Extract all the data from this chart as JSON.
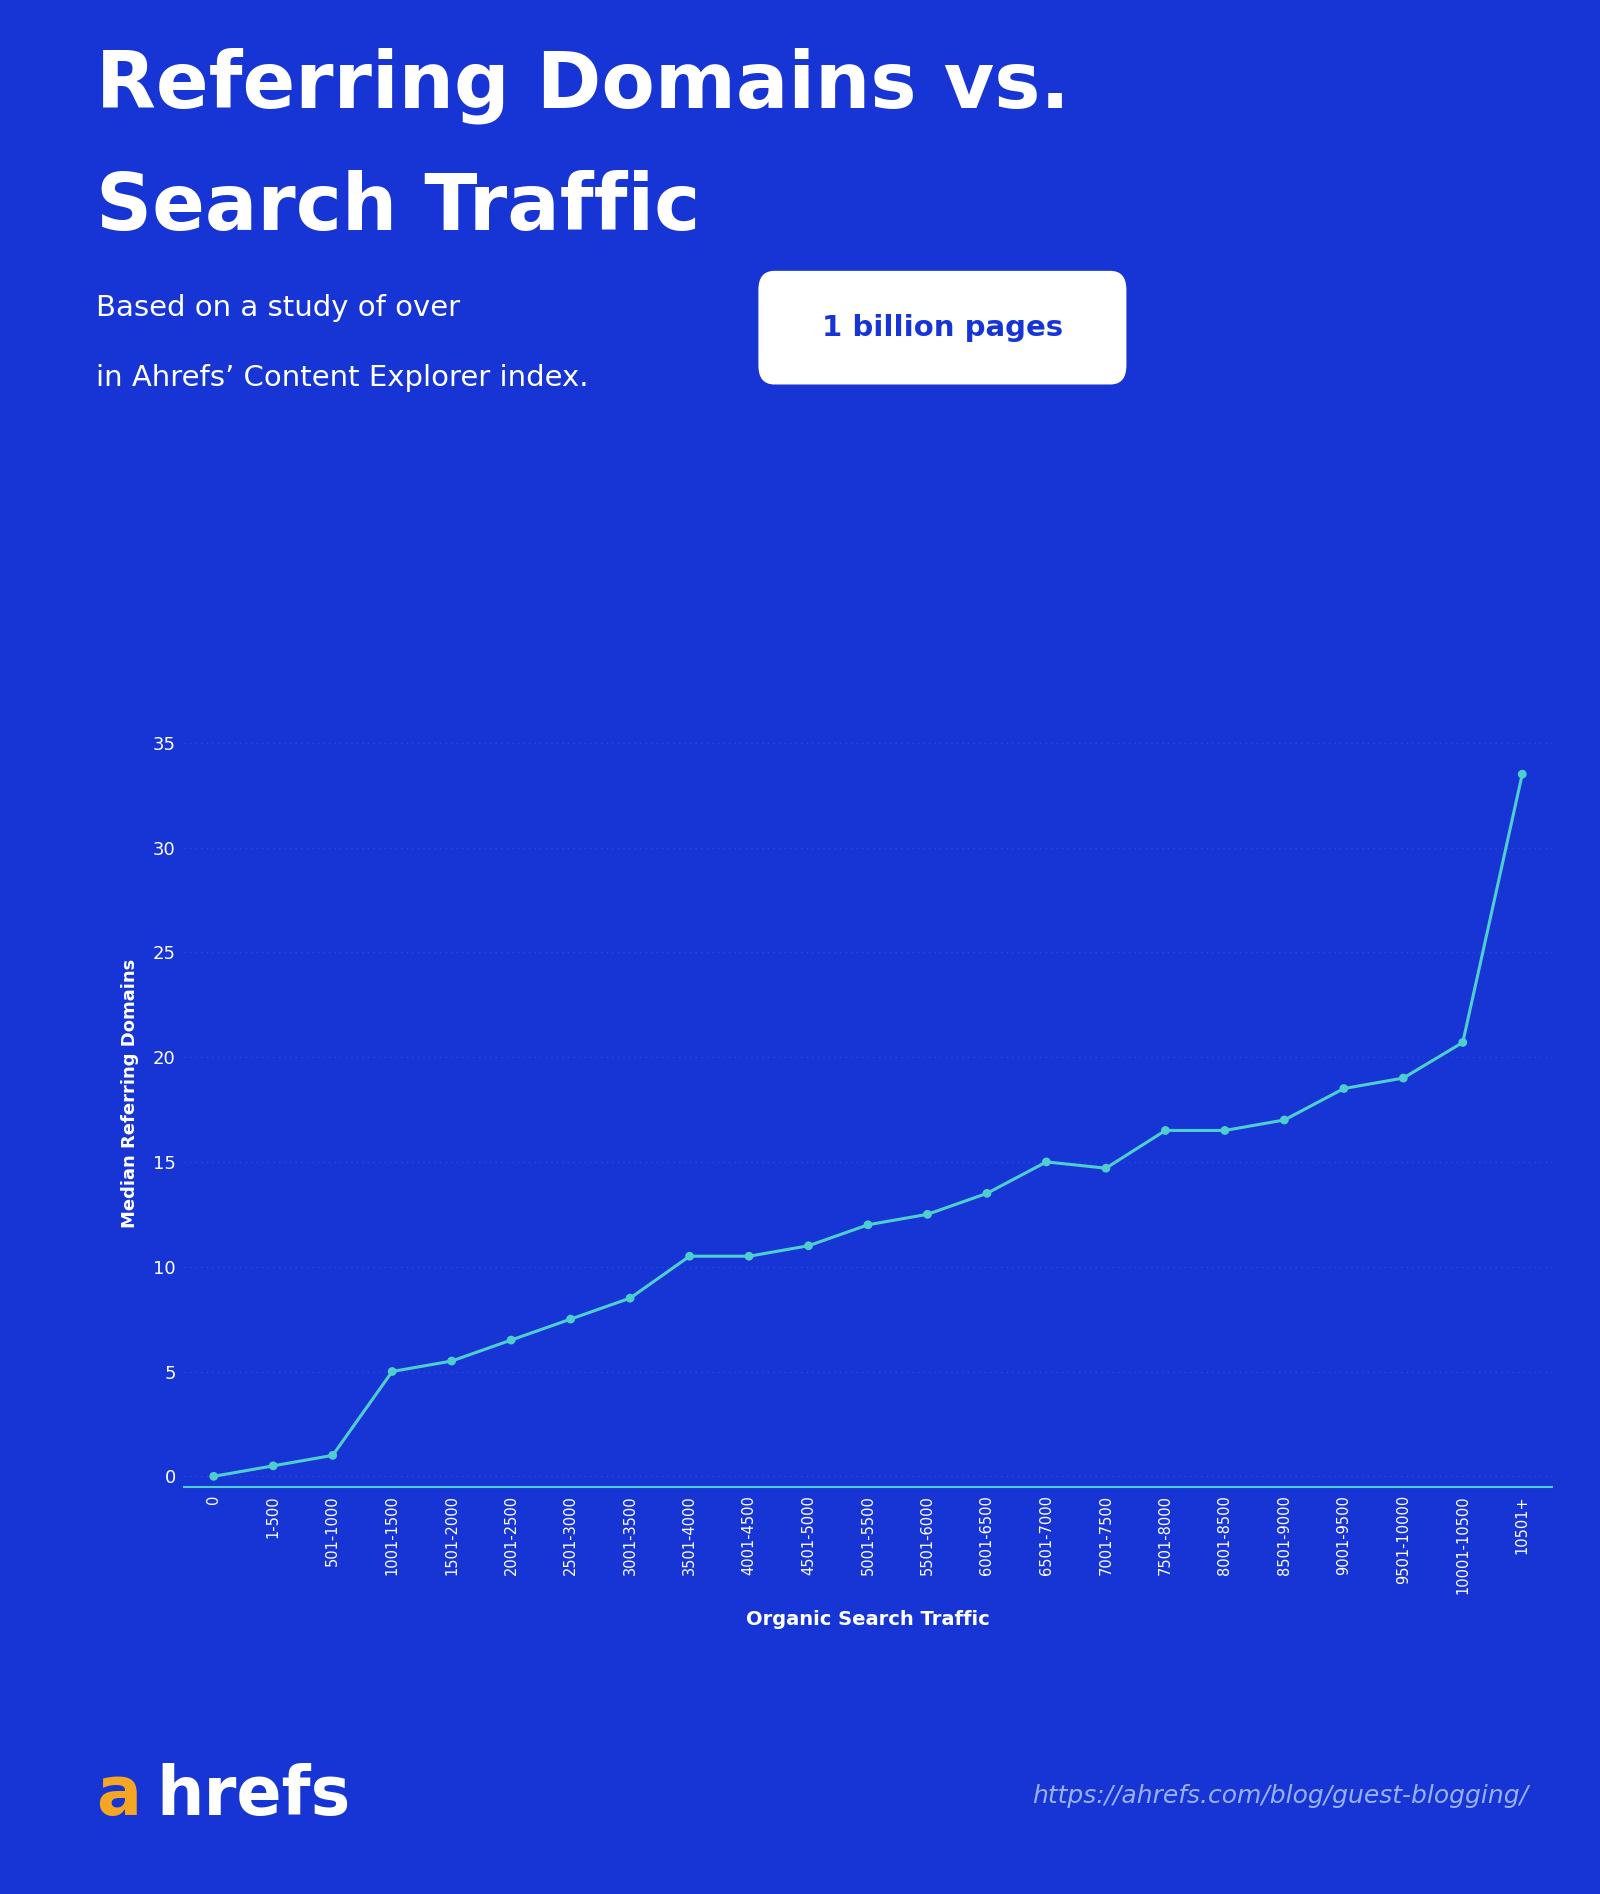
{
  "title_line1": "Referring Domains vs.",
  "title_line2": "Search Traffic",
  "subtitle_before": "Based on a study of over",
  "subtitle_highlight": "1 billion pages",
  "subtitle_after": "in Ahrefs’ Content Explorer index.",
  "xlabel": "Organic Search Traffic",
  "ylabel": "Median Referring Domains",
  "background_color": "#1635D4",
  "line_color": "#4ECFCE",
  "marker_color": "#4ECFCE",
  "grid_color": "#2A47DD",
  "text_color": "#FFFFFF",
  "url_text": "https://ahrefs.com/blog/guest-blogging/",
  "url_color": "#9AB0F5",
  "highlight_box_color": "#FFFFFF",
  "highlight_text_color": "#1635D4",
  "ahrefs_a_color": "#F5A623",
  "x_categories": [
    "0",
    "1-500",
    "501-1000",
    "1001-1500",
    "1501-2000",
    "2001-2500",
    "2501-3000",
    "3001-3500",
    "3501-4000",
    "4001-4500",
    "4501-5000",
    "5001-5500",
    "5501-6000",
    "6001-6500",
    "6501-7000",
    "7001-7500",
    "7501-8000",
    "8001-8500",
    "8501-9000",
    "9001-9500",
    "9501-10000",
    "10001-10500",
    "10501+"
  ],
  "y_values": [
    0.0,
    0.5,
    1.0,
    5.0,
    5.5,
    6.5,
    7.5,
    8.5,
    10.5,
    10.5,
    11.0,
    12.0,
    12.5,
    13.5,
    15.0,
    14.7,
    16.5,
    16.5,
    17.0,
    18.5,
    19.0,
    20.7,
    33.5
  ],
  "yticks": [
    0,
    5,
    10,
    15,
    20,
    25,
    30,
    35
  ],
  "ylim": [
    -0.5,
    37
  ],
  "figsize": [
    16.0,
    18.94
  ]
}
